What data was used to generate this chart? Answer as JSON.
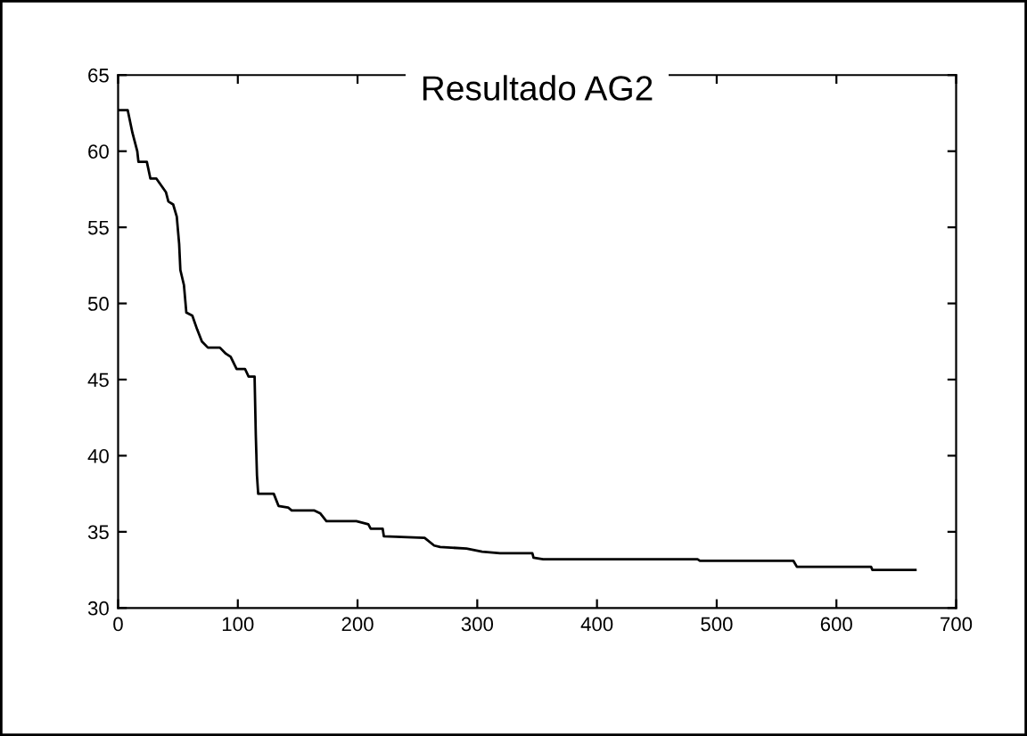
{
  "chart_data": {
    "type": "line",
    "title": "Resultado AG2",
    "series": [
      {
        "color": "#000000",
        "x": [
          0,
          8,
          12,
          16,
          17,
          24,
          27,
          32,
          40,
          42,
          46,
          49,
          51,
          52,
          55,
          57,
          62,
          66,
          70,
          75,
          85,
          90,
          94,
          99,
          106,
          109,
          114,
          115,
          116,
          117,
          130,
          134,
          142,
          145,
          164,
          169,
          174,
          199,
          209,
          211,
          221,
          222,
          256,
          264,
          269,
          291,
          304,
          319,
          346,
          347,
          355,
          484,
          486,
          564,
          567,
          629,
          630,
          666
        ],
        "values": [
          62.7,
          62.7,
          61.2,
          60,
          59.3,
          59.3,
          58.2,
          58.2,
          57.3,
          56.7,
          56.5,
          55.7,
          53.9,
          52.2,
          51.2,
          49.4,
          49.2,
          48.3,
          47.5,
          47.1,
          47.1,
          46.7,
          46.5,
          45.7,
          45.7,
          45.2,
          45.2,
          41.4,
          38.7,
          37.5,
          37.5,
          36.7,
          36.6,
          36.4,
          36.4,
          36.2,
          35.7,
          35.7,
          35.5,
          35.2,
          35.2,
          34.7,
          34.6,
          34.1,
          34.0,
          33.9,
          33.7,
          33.6,
          33.6,
          33.3,
          33.2,
          33.2,
          33.1,
          33.1,
          32.7,
          32.7,
          32.5,
          32.5
        ]
      }
    ],
    "xlim": [
      0,
      700
    ],
    "xticks": [
      0,
      100,
      200,
      300,
      400,
      500,
      600,
      700
    ],
    "ylim": [
      30,
      65
    ],
    "yticks": [
      30,
      35,
      40,
      45,
      50,
      55,
      60,
      65
    ],
    "grid": false,
    "legend": false,
    "marker": "none",
    "line_style": "solid"
  }
}
